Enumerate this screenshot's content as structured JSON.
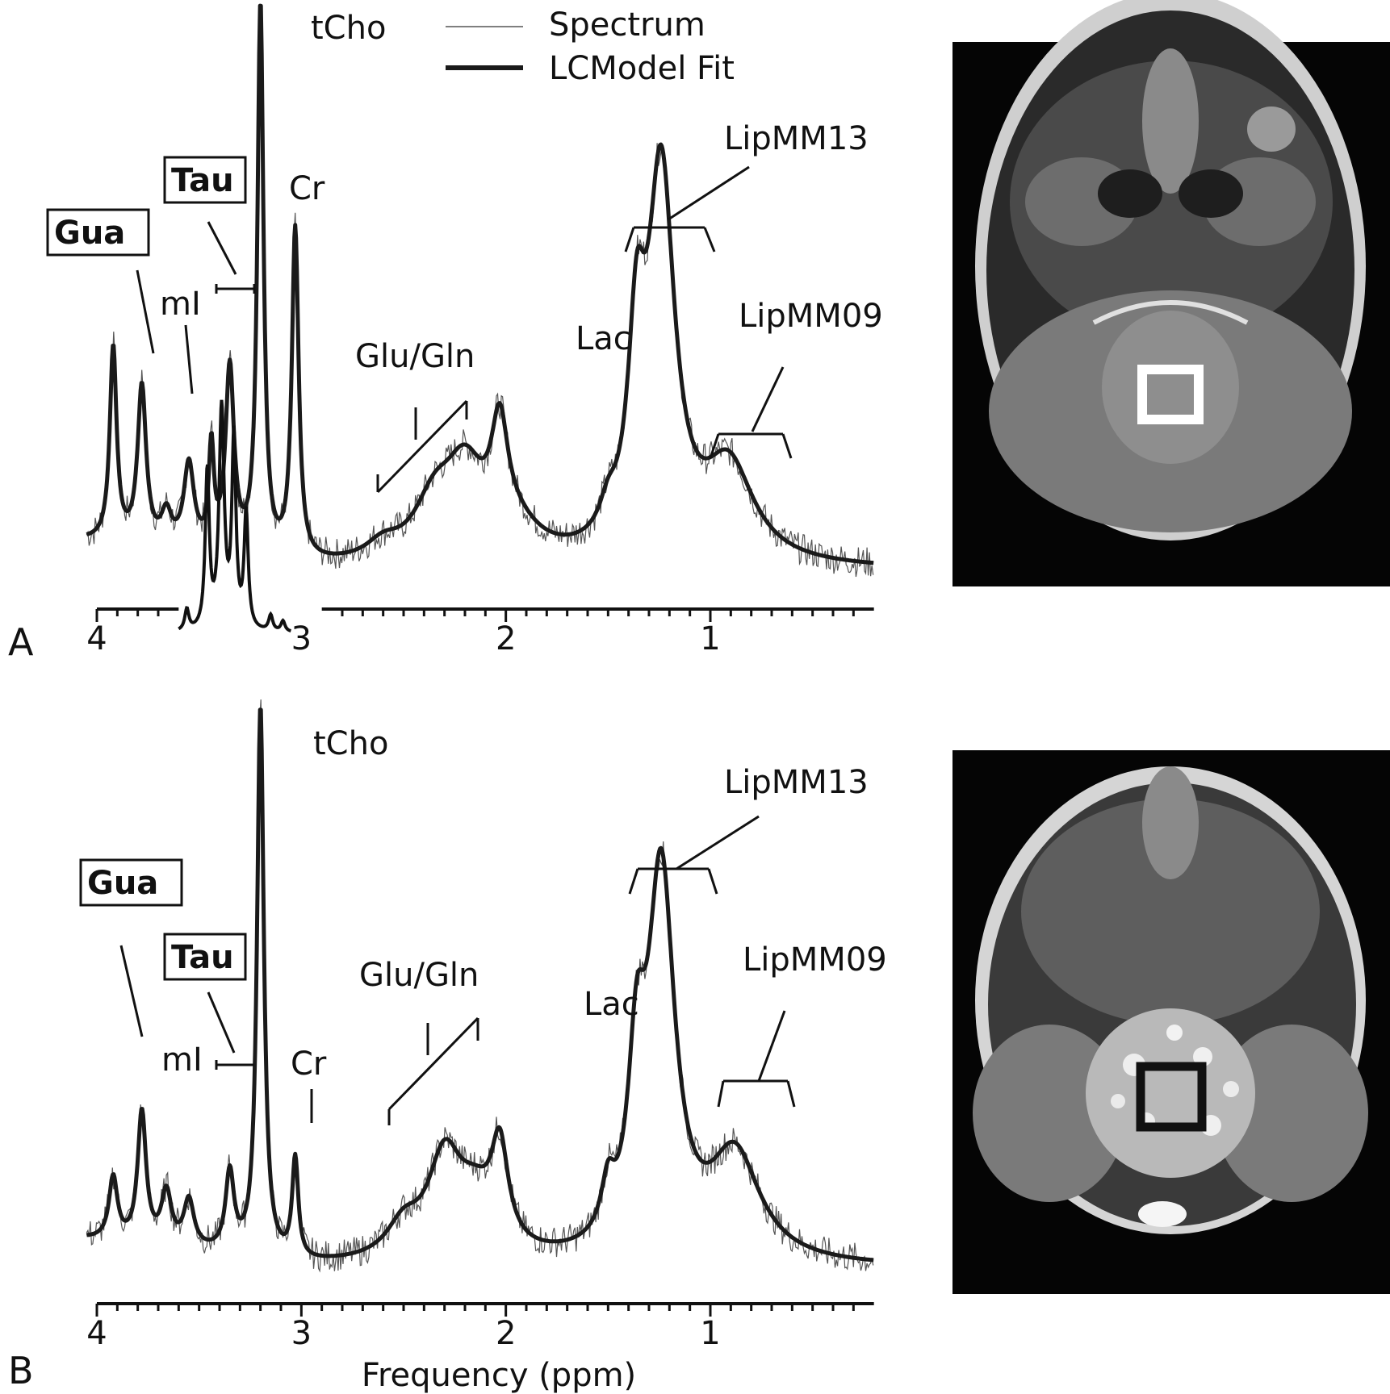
{
  "figure": {
    "axis_title": "Frequency (ppm)",
    "legend": [
      {
        "label": "Spectrum",
        "style": "thin",
        "color": "#555555"
      },
      {
        "label": "LCModel Fit",
        "style": "thick",
        "color": "#1a1a1a"
      }
    ],
    "images": [
      {
        "panel": "A",
        "description": "axial T2 MRI of the head with a white square voxel marker",
        "voxel_color": "#ffffff"
      },
      {
        "panel": "B",
        "description": "axial T2 MRI of the head with a large posterior fossa mass and a black square voxel marker",
        "voxel_color": "#111111"
      }
    ]
  },
  "chart_data": [
    {
      "type": "line",
      "panel_letter": "A",
      "xlabel": "",
      "ylabel": "",
      "xlim": [
        4.0,
        0.2
      ],
      "x_reversed": true,
      "x_ticks": [
        {
          "value": 4,
          "label": "4"
        },
        {
          "value": 3,
          "label": "3"
        },
        {
          "value": 2,
          "label": "2"
        },
        {
          "value": 1,
          "label": "1"
        }
      ],
      "peak_labels": [
        {
          "text": "tCho",
          "ppm": 3.2,
          "boxed": false
        },
        {
          "text": "Cr",
          "ppm": 3.03,
          "boxed": false
        },
        {
          "text": "Gua",
          "ppm": 3.78,
          "boxed": true
        },
        {
          "text": "Tau",
          "ppm": 3.35,
          "boxed": true
        },
        {
          "text": "mI",
          "ppm": 3.56,
          "boxed": false
        },
        {
          "text": "Glu/Gln",
          "ppm": 2.3,
          "boxed": false
        },
        {
          "text": "Lac",
          "ppm": 1.33,
          "boxed": false
        },
        {
          "text": "LipMM13",
          "ppm": 1.3,
          "boxed": false
        },
        {
          "text": "LipMM09",
          "ppm": 0.9,
          "boxed": false
        }
      ],
      "series": [
        {
          "name": "LCModel Fit",
          "peaks": [
            {
              "ppm": 3.92,
              "height": 0.37,
              "width": 0.02
            },
            {
              "ppm": 3.78,
              "height": 0.3,
              "width": 0.025
            },
            {
              "ppm": 3.66,
              "height": 0.06,
              "width": 0.03
            },
            {
              "ppm": 3.55,
              "height": 0.16,
              "width": 0.03
            },
            {
              "ppm": 3.44,
              "height": 0.19,
              "width": 0.015
            },
            {
              "ppm": 3.35,
              "height": 0.35,
              "width": 0.025
            },
            {
              "ppm": 3.2,
              "height": 1.05,
              "width": 0.018
            },
            {
              "ppm": 3.03,
              "height": 0.63,
              "width": 0.02
            },
            {
              "ppm": 2.6,
              "height": 0.03,
              "width": 0.1
            },
            {
              "ppm": 2.35,
              "height": 0.1,
              "width": 0.12
            },
            {
              "ppm": 2.2,
              "height": 0.16,
              "width": 0.12
            },
            {
              "ppm": 2.03,
              "height": 0.2,
              "width": 0.05
            },
            {
              "ppm": 1.95,
              "height": 0.05,
              "width": 0.15
            },
            {
              "ppm": 1.5,
              "height": 0.05,
              "width": 0.05
            },
            {
              "ppm": 1.36,
              "height": 0.35,
              "width": 0.05
            },
            {
              "ppm": 1.24,
              "height": 0.72,
              "width": 0.08
            },
            {
              "ppm": 0.91,
              "height": 0.18,
              "width": 0.15
            }
          ]
        },
        {
          "name": "Spectrum",
          "peaks": []
        }
      ],
      "inset": {
        "description": "individual Tau basis component",
        "peaks": [
          {
            "ppm": 3.46,
            "height": 0.3,
            "width": 0.012
          },
          {
            "ppm": 3.39,
            "height": 0.42,
            "width": 0.015
          },
          {
            "ppm": 3.33,
            "height": 0.36,
            "width": 0.012
          },
          {
            "ppm": 3.27,
            "height": 0.22,
            "width": 0.012
          },
          {
            "ppm": 3.56,
            "height": 0.04,
            "width": 0.012
          },
          {
            "ppm": 3.15,
            "height": 0.03,
            "width": 0.012
          },
          {
            "ppm": 3.09,
            "height": 0.02,
            "width": 0.012
          }
        ]
      }
    },
    {
      "type": "line",
      "panel_letter": "B",
      "xlabel": "Frequency (ppm)",
      "ylabel": "",
      "xlim": [
        4.0,
        0.2
      ],
      "x_reversed": true,
      "x_ticks": [
        {
          "value": 4,
          "label": "4"
        },
        {
          "value": 3,
          "label": "3"
        },
        {
          "value": 2,
          "label": "2"
        },
        {
          "value": 1,
          "label": "1"
        }
      ],
      "peak_labels": [
        {
          "text": "tCho",
          "ppm": 3.2,
          "boxed": false
        },
        {
          "text": "Cr",
          "ppm": 3.03,
          "boxed": false
        },
        {
          "text": "Gua",
          "ppm": 3.78,
          "boxed": true
        },
        {
          "text": "Tau",
          "ppm": 3.35,
          "boxed": true
        },
        {
          "text": "mI",
          "ppm": 3.56,
          "boxed": false
        },
        {
          "text": "Glu/Gln",
          "ppm": 2.3,
          "boxed": false
        },
        {
          "text": "Lac",
          "ppm": 1.33,
          "boxed": false
        },
        {
          "text": "LipMM13",
          "ppm": 1.3,
          "boxed": false
        },
        {
          "text": "LipMM09",
          "ppm": 0.9,
          "boxed": false
        }
      ],
      "series": [
        {
          "name": "LCModel Fit",
          "peaks": [
            {
              "ppm": 3.92,
              "height": 0.12,
              "width": 0.025
            },
            {
              "ppm": 3.78,
              "height": 0.25,
              "width": 0.025
            },
            {
              "ppm": 3.66,
              "height": 0.1,
              "width": 0.03
            },
            {
              "ppm": 3.55,
              "height": 0.09,
              "width": 0.03
            },
            {
              "ppm": 3.35,
              "height": 0.15,
              "width": 0.025
            },
            {
              "ppm": 3.2,
              "height": 1.05,
              "width": 0.02
            },
            {
              "ppm": 3.03,
              "height": 0.19,
              "width": 0.018
            },
            {
              "ppm": 2.5,
              "height": 0.06,
              "width": 0.1
            },
            {
              "ppm": 2.3,
              "height": 0.18,
              "width": 0.1
            },
            {
              "ppm": 2.03,
              "height": 0.18,
              "width": 0.05
            },
            {
              "ppm": 2.15,
              "height": 0.1,
              "width": 0.12
            },
            {
              "ppm": 1.5,
              "height": 0.09,
              "width": 0.04
            },
            {
              "ppm": 1.36,
              "height": 0.3,
              "width": 0.05
            },
            {
              "ppm": 1.24,
              "height": 0.72,
              "width": 0.08
            },
            {
              "ppm": 0.88,
              "height": 0.2,
              "width": 0.15
            }
          ]
        },
        {
          "name": "Spectrum",
          "peaks": []
        }
      ]
    }
  ]
}
